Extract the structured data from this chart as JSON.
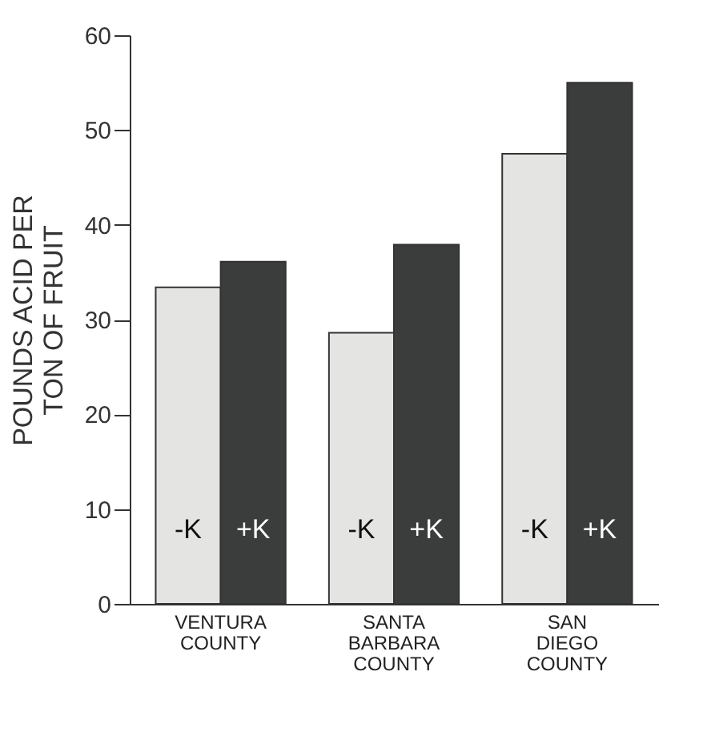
{
  "chart_data": {
    "type": "bar",
    "ylabel": "POUNDS ACID PER TON OF FRUIT",
    "categories": [
      "VENTURA COUNTY",
      "SANTA BARBARA COUNTY",
      "SAN DIEGO COUNTY"
    ],
    "series": [
      {
        "name": "-K",
        "color": "#e4e4e2",
        "values": [
          33.4,
          28.6,
          47.5
        ]
      },
      {
        "name": "+K",
        "color": "#3a3d3c",
        "values": [
          36.1,
          37.9,
          55.0
        ]
      }
    ],
    "ylim": [
      0,
      60
    ],
    "yticks": [
      0,
      10,
      20,
      30,
      40,
      50,
      60
    ],
    "grid": false,
    "legend": false
  }
}
